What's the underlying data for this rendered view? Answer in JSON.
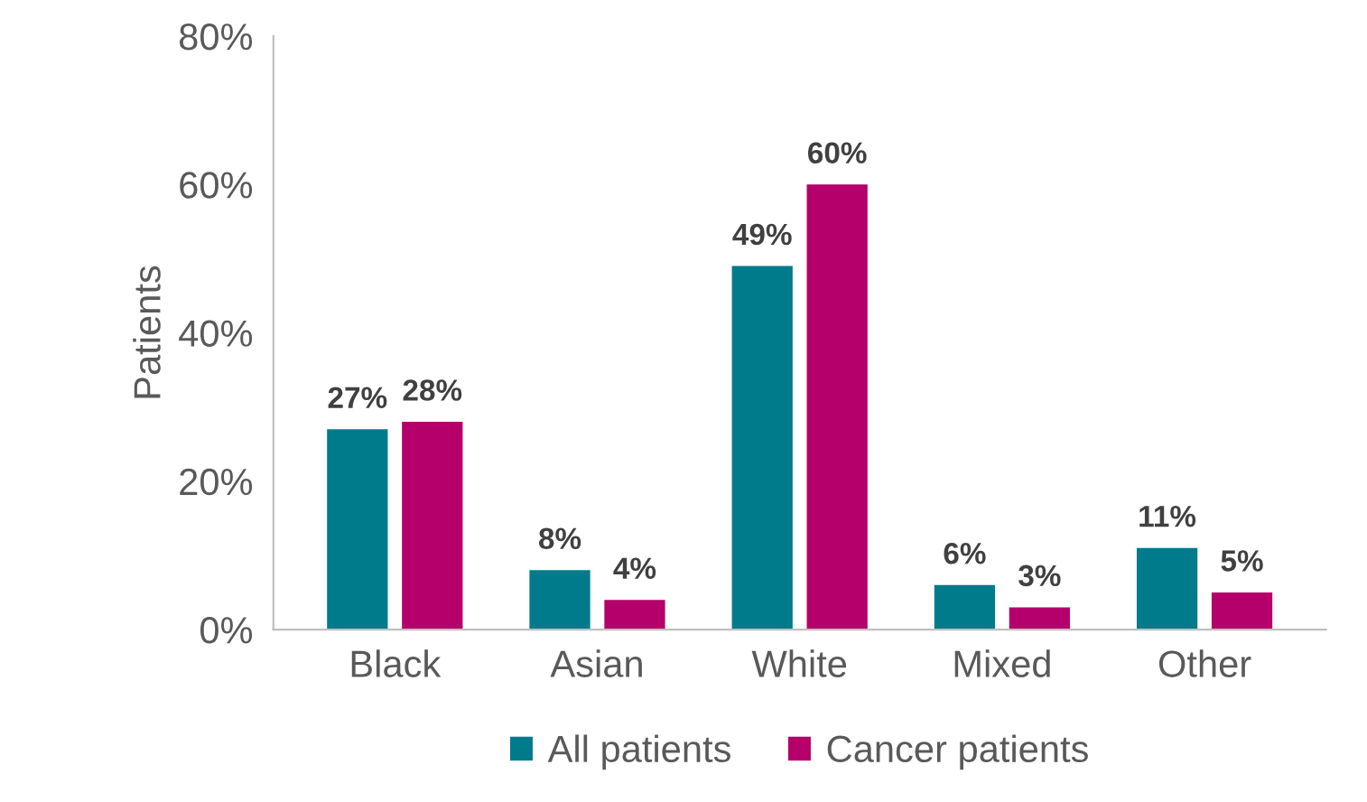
{
  "chart_data": {
    "type": "bar",
    "ylabel": "Patients",
    "categories": [
      "Black",
      "Asian",
      "White",
      "Mixed",
      "Other"
    ],
    "series": [
      {
        "name": "All patients",
        "color": "#007b8c",
        "values": [
          27,
          8,
          49,
          6,
          11
        ],
        "value_labels": [
          "27%",
          "8%",
          "49%",
          "6%",
          "11%"
        ]
      },
      {
        "name": "Cancer patients",
        "color": "#b5006b",
        "values": [
          28,
          4,
          60,
          3,
          5
        ],
        "value_labels": [
          "28%",
          "4%",
          "60%",
          "3%",
          "5%"
        ]
      }
    ],
    "ylim": [
      0,
      80
    ],
    "yticks": [
      {
        "value": 0,
        "label": "0%"
      },
      {
        "value": 20,
        "label": "20%"
      },
      {
        "value": 40,
        "label": "40%"
      },
      {
        "value": 60,
        "label": "60%"
      },
      {
        "value": 80,
        "label": "80%"
      }
    ],
    "grid": false,
    "legend": "bottom"
  }
}
